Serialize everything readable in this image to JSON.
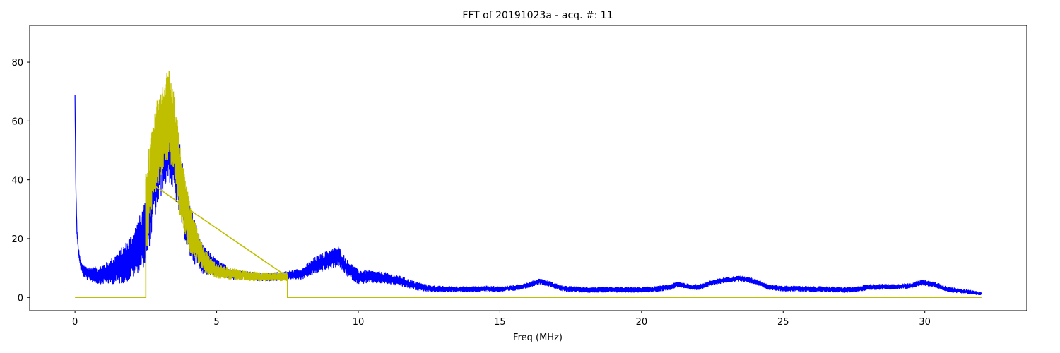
{
  "chart_data": {
    "type": "line",
    "title": "FFT of 20191023a - acq. #: 11",
    "xlabel": "Freq (MHz)",
    "ylabel": "",
    "xlim": [
      -1.6,
      33.6
    ],
    "ylim": [
      -4.5,
      92.5
    ],
    "xticks": [
      0,
      5,
      10,
      15,
      20,
      25,
      30
    ],
    "yticks": [
      0,
      20,
      40,
      60,
      80
    ],
    "grid": false,
    "series": [
      {
        "color": "#0000ff",
        "style": "noisy-spectrum",
        "x": [
          0,
          0.03,
          0.07,
          0.12,
          0.2,
          0.3,
          0.5,
          0.8,
          1.0,
          1.2,
          1.4,
          1.6,
          1.8,
          2.0,
          2.2,
          2.5,
          2.8,
          3.0,
          3.3,
          3.6,
          4.0,
          4.5,
          5.0,
          5.5,
          6.0,
          6.5,
          7.0,
          7.5,
          8.0,
          8.5,
          9.0,
          9.3,
          9.6,
          10.0,
          10.5,
          11.0,
          11.5,
          12.0,
          12.5,
          13.0,
          13.5,
          14.0,
          14.5,
          15.0,
          15.5,
          16.0,
          16.4,
          16.8,
          17.2,
          17.6,
          18.0,
          18.5,
          19.0,
          19.5,
          20.0,
          20.5,
          21.0,
          21.3,
          21.7,
          22.0,
          22.5,
          23.0,
          23.5,
          24.0,
          24.5,
          25.0,
          25.5,
          26.0,
          26.5,
          27.0,
          27.5,
          28.0,
          28.5,
          29.0,
          29.5,
          29.9,
          30.3,
          30.8,
          31.2,
          31.6,
          32.0
        ],
        "y": [
          68,
          38,
          22,
          16,
          11,
          9,
          8,
          7.5,
          8,
          8.5,
          9.5,
          10.5,
          12,
          14,
          17,
          22,
          40,
          48,
          55,
          45,
          24,
          13,
          10,
          8,
          7.5,
          7,
          7,
          7.5,
          8,
          11,
          13,
          14,
          10,
          7,
          7,
          6.5,
          5.5,
          4,
          3,
          2.8,
          2.8,
          2.8,
          3,
          2.8,
          3.2,
          4.2,
          5.5,
          4.5,
          3,
          2.8,
          2.6,
          2.6,
          2.6,
          2.6,
          2.6,
          2.8,
          3.5,
          4.5,
          3.5,
          3.5,
          5,
          6,
          6.5,
          5.5,
          3.5,
          3,
          3,
          2.8,
          2.8,
          2.6,
          2.6,
          3.5,
          3.6,
          3.6,
          4,
          5,
          4.5,
          2.8,
          2.2,
          1.8,
          1.2
        ],
        "band_half_width": [
          1,
          0.8,
          0.8,
          1.2,
          1.5,
          2,
          2.5,
          3,
          3.5,
          4,
          5,
          6,
          7,
          8,
          9,
          11,
          14,
          15,
          15,
          14,
          10,
          5,
          3,
          2,
          1.5,
          1.5,
          1.5,
          1.5,
          2,
          3,
          3.5,
          3.5,
          3,
          2.5,
          2.2,
          2,
          1.8,
          1.5,
          1.2,
          1.1,
          1,
          1,
          1,
          1,
          1,
          1,
          1,
          1,
          1,
          1,
          1,
          1,
          1,
          1,
          1,
          1,
          1,
          1,
          1,
          1,
          1,
          1,
          1,
          1,
          1,
          1,
          1,
          1,
          1,
          1,
          1,
          1,
          1,
          1,
          1,
          1,
          1,
          1,
          0.8,
          0.8,
          0.5
        ]
      },
      {
        "color": "#bfbf00",
        "style": "masked-spectrum",
        "range": [
          2.5,
          7.5
        ],
        "x": [
          2.5,
          2.7,
          2.9,
          3.1,
          3.3,
          3.5,
          3.7,
          3.9,
          4.1,
          4.3,
          4.5,
          4.7,
          5.0,
          5.5,
          6.0,
          6.5,
          7.0,
          7.5
        ],
        "y": [
          28,
          42,
          52,
          58,
          62,
          57,
          40,
          30,
          22,
          18,
          14,
          11,
          9,
          8,
          7.5,
          7,
          7,
          7
        ],
        "band_half_width": [
          16,
          14,
          15,
          15,
          16,
          14,
          12,
          10,
          8,
          6,
          4.5,
          3.5,
          2.5,
          2,
          1.8,
          1.6,
          1.5,
          1.5
        ],
        "baseline": [
          [
            0,
            0
          ],
          [
            2.5,
            0
          ],
          [
            2.5,
            40
          ],
          [
            7.5,
            7
          ],
          [
            7.5,
            0
          ],
          [
            32,
            0
          ]
        ]
      }
    ]
  }
}
